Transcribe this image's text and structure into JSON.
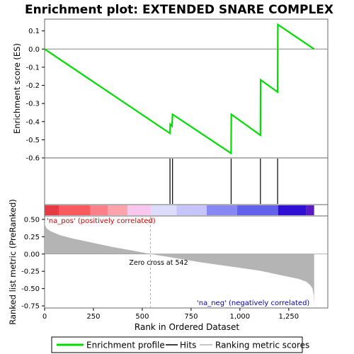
{
  "chart_data": {
    "type": "line",
    "title": "Enrichment plot: EXTENDED SNARE COMPLEX",
    "es_panel": {
      "ylabel": "Enrichment score (ES)",
      "ylim": [
        -0.6,
        0.165
      ],
      "yticks": [
        -0.6,
        -0.5,
        -0.4,
        -0.3,
        -0.2,
        -0.1,
        0.0,
        0.1
      ],
      "ytick_labels": [
        "-0.6",
        "-0.5",
        "-0.4",
        "-0.3",
        "-0.2",
        "-0.1",
        "0.0",
        "0.1"
      ],
      "series": [
        {
          "name": "Enrichment profile",
          "color": "#00dd00",
          "x": [
            0,
            642,
            643,
            652,
            655,
            955,
            956,
            1105,
            1106,
            1193,
            1194,
            1380
          ],
          "y": [
            0.0,
            -0.465,
            -0.415,
            -0.425,
            -0.36,
            -0.575,
            -0.36,
            -0.475,
            -0.17,
            -0.237,
            0.135,
            0.0
          ]
        }
      ]
    },
    "hits": {
      "name": "Hits",
      "positions": [
        642,
        655,
        955,
        1105,
        1193
      ]
    },
    "rank_panel": {
      "ylabel": "Ranked list metric (PreRanked)",
      "xlabel": "Rank in Ordered Dataset",
      "xlim": [
        0,
        1450
      ],
      "xticks": [
        0,
        250,
        500,
        750,
        1000,
        1250
      ],
      "xtick_labels": [
        "0",
        "250",
        "500",
        "750",
        "1,000",
        "1,250"
      ],
      "ylim": [
        -0.78,
        0.55
      ],
      "yticks": [
        -0.75,
        -0.5,
        -0.25,
        0.0,
        0.25,
        0.5
      ],
      "ytick_labels": [
        "-0.75",
        "-0.50",
        "-0.25",
        "0.00",
        "0.25",
        "0.50"
      ],
      "n_genes": 1380,
      "metric_profile_x": [
        0,
        2,
        10,
        30,
        80,
        150,
        250,
        350,
        450,
        542,
        650,
        800,
        950,
        1100,
        1200,
        1300,
        1340,
        1360,
        1372,
        1378,
        1380
      ],
      "metric_profile_y": [
        0.5,
        0.42,
        0.37,
        0.33,
        0.27,
        0.22,
        0.16,
        0.1,
        0.05,
        0.0,
        -0.05,
        -0.12,
        -0.18,
        -0.24,
        -0.3,
        -0.36,
        -0.4,
        -0.45,
        -0.5,
        -0.6,
        -0.75
      ],
      "zero_cross": 542,
      "fill_color": "#b4b4b4"
    },
    "annotations": {
      "pos_label": "'na_pos' (positively correlated)",
      "neg_label": "'na_neg' (negatively correlated)",
      "zero_cross_label": "Zero cross at 542"
    },
    "color_bar": {
      "boundaries": [
        0,
        75,
        235,
        325,
        425,
        545,
        675,
        830,
        985,
        1195,
        1340,
        1380
      ],
      "colors": [
        "#e53b44",
        "#f85a5e",
        "#fb8088",
        "#fda3ab",
        "#f9c7ee",
        "#dcdcfd",
        "#c5c5fc",
        "#8888f5",
        "#6262ea",
        "#2f0fd4",
        "#5a1cc0"
      ]
    },
    "legend": {
      "items": [
        {
          "label": "Enrichment profile",
          "color": "#00dd00",
          "kind": "thick-line"
        },
        {
          "label": "Hits",
          "color": "#000000",
          "kind": "line"
        },
        {
          "label": "Ranking metric scores",
          "color": "#b4b4b4",
          "kind": "line"
        }
      ]
    }
  }
}
